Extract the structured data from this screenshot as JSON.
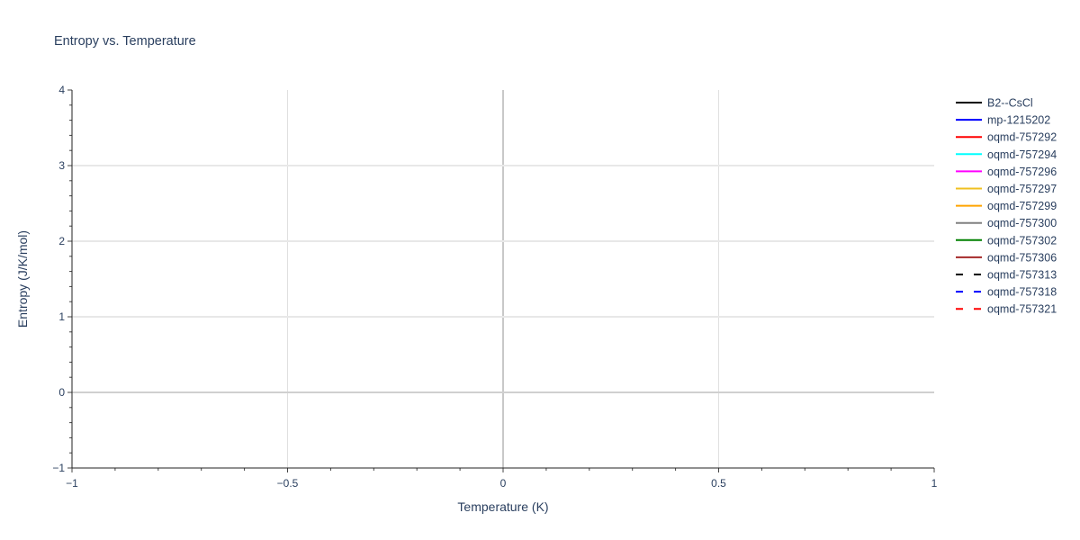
{
  "chart_data": {
    "type": "line",
    "title": "Entropy vs. Temperature",
    "xlabel": "Temperature (K)",
    "ylabel": "Entropy (J/K/mol)",
    "xlim": [
      -1,
      1
    ],
    "ylim": [
      -1,
      4
    ],
    "x_ticks": [
      -1,
      -0.5,
      0,
      0.5,
      1
    ],
    "x_tick_labels": [
      "−1",
      "−0.5",
      "0",
      "0.5",
      "1"
    ],
    "y_ticks": [
      -1,
      0,
      1,
      2,
      3,
      4
    ],
    "y_tick_labels": [
      "−1",
      "0",
      "1",
      "2",
      "3",
      "4"
    ],
    "grid": true,
    "legend_placement": "right",
    "series": [
      {
        "name": "B2--CsCl",
        "color": "#000000",
        "dash": "solid",
        "x": [],
        "y": []
      },
      {
        "name": "mp-1215202",
        "color": "#0000ff",
        "dash": "solid",
        "x": [],
        "y": []
      },
      {
        "name": "oqmd-757292",
        "color": "#ff0000",
        "dash": "solid",
        "x": [],
        "y": []
      },
      {
        "name": "oqmd-757294",
        "color": "#00ffff",
        "dash": "solid",
        "x": [],
        "y": []
      },
      {
        "name": "oqmd-757296",
        "color": "#ff00ff",
        "dash": "solid",
        "x": [],
        "y": []
      },
      {
        "name": "oqmd-757297",
        "color": "#f0c020",
        "dash": "solid",
        "x": [],
        "y": []
      },
      {
        "name": "oqmd-757299",
        "color": "#ffa500",
        "dash": "solid",
        "x": [],
        "y": []
      },
      {
        "name": "oqmd-757300",
        "color": "#808080",
        "dash": "solid",
        "x": [],
        "y": []
      },
      {
        "name": "oqmd-757302",
        "color": "#008000",
        "dash": "solid",
        "x": [],
        "y": []
      },
      {
        "name": "oqmd-757306",
        "color": "#a52a2a",
        "dash": "solid",
        "x": [],
        "y": []
      },
      {
        "name": "oqmd-757313",
        "color": "#000000",
        "dash": "dash",
        "x": [],
        "y": []
      },
      {
        "name": "oqmd-757318",
        "color": "#0000ff",
        "dash": "dash",
        "x": [],
        "y": []
      },
      {
        "name": "oqmd-757321",
        "color": "#ff0000",
        "dash": "dash",
        "x": [],
        "y": []
      }
    ]
  }
}
